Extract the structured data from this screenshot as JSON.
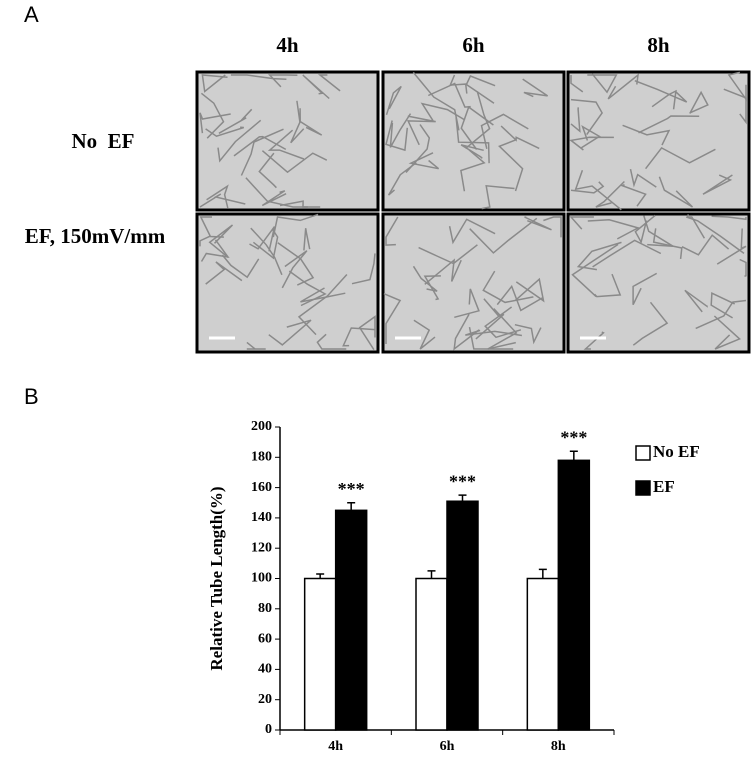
{
  "panel_a": {
    "label": "A",
    "columns": [
      "4h",
      "6h",
      "8h"
    ],
    "rows": [
      "No  EF",
      "EF, 150mV/mm"
    ]
  },
  "chart_data": {
    "type": "bar",
    "panel_label": "B",
    "y_label": "Relative Tube Length(%)",
    "categories": [
      "4h",
      "6h",
      "8h"
    ],
    "series": [
      {
        "name": "No EF",
        "color": "#ffffff",
        "values": [
          100,
          100,
          100
        ],
        "errors": [
          3,
          5,
          6
        ]
      },
      {
        "name": "EF",
        "color": "#000000",
        "values": [
          145,
          151,
          178
        ],
        "errors": [
          5,
          4,
          6
        ],
        "value_labels": [
          "***",
          "***",
          "***"
        ]
      }
    ],
    "ylim": [
      0,
      200
    ],
    "yticks": [
      0,
      20,
      40,
      60,
      80,
      100,
      120,
      140,
      160,
      180,
      200
    ],
    "legend": "right",
    "grid": false
  }
}
